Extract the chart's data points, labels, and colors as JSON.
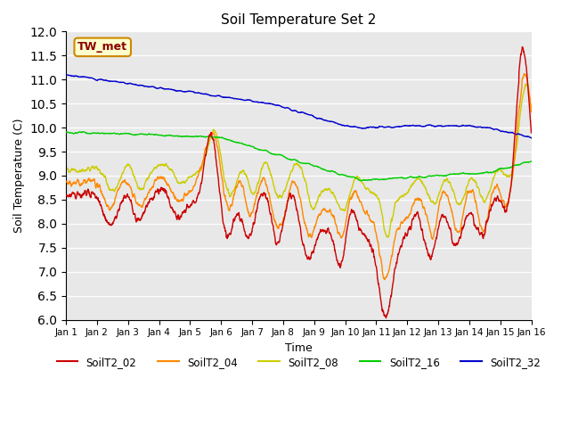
{
  "title": "Soil Temperature Set 2",
  "xlabel": "Time",
  "ylabel": "Soil Temperature (C)",
  "ylim": [
    6.0,
    12.0
  ],
  "yticks": [
    6.0,
    6.5,
    7.0,
    7.5,
    8.0,
    8.5,
    9.0,
    9.5,
    10.0,
    10.5,
    11.0,
    11.5,
    12.0
  ],
  "x_labels": [
    "Jan 1",
    "Jan 2",
    "Jan 3",
    "Jan 4",
    "Jan 5",
    "Jan 6",
    "Jan 7",
    "Jan 8",
    "Jan 9",
    "Jan 10",
    "Jan 11",
    "Jan 12",
    "Jan 13",
    "Jan 14",
    "Jan 15",
    "Jan 16"
  ],
  "colors": {
    "SoilT2_02": "#cc0000",
    "SoilT2_04": "#ff8800",
    "SoilT2_08": "#cccc00",
    "SoilT2_16": "#00cc00",
    "SoilT2_32": "#0000cc"
  },
  "background_color": "#e8e8e8",
  "annotation_text": "TW_met",
  "annotation_bbox_facecolor": "#ffffcc",
  "annotation_bbox_edgecolor": "#cc8800"
}
